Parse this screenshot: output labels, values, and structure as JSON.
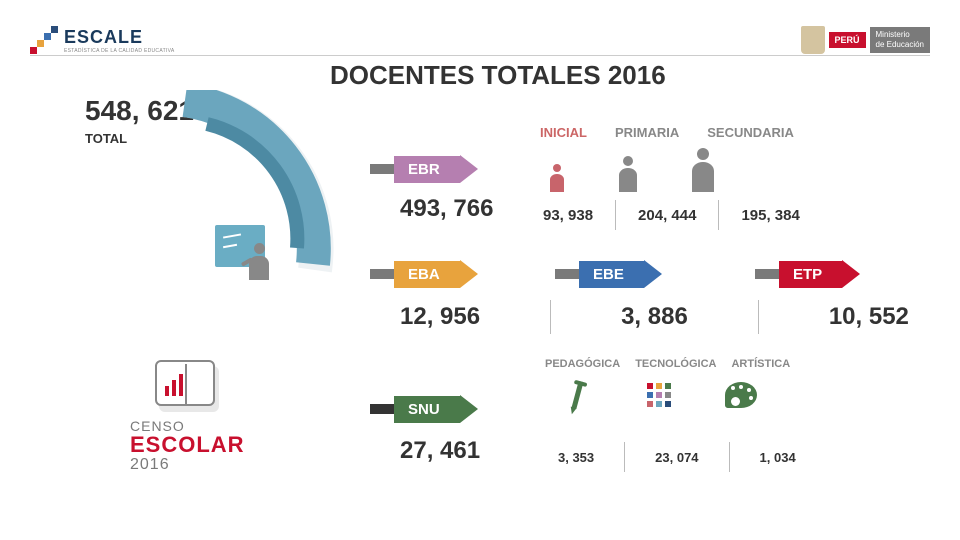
{
  "header": {
    "logo_text": "ESCALE",
    "logo_sub": "ESTADÍSTICA DE LA CALIDAD EDUCATIVA",
    "stairs_colors": [
      "#c8102e",
      "#e8a33d",
      "#3b6fb0",
      "#2a4d7a"
    ],
    "peru": "PERÚ",
    "ministry_l1": "Ministerio",
    "ministry_l2": "de Educación"
  },
  "title": "DOCENTES TOTALES 2016",
  "total": {
    "value": "548, 621",
    "label": "TOTAL"
  },
  "arc": {
    "outer_color": "#6ba6be",
    "inner_color": "#4d8aa3",
    "bg": "#eef2f4"
  },
  "ebr": {
    "tag": "EBR",
    "tag_color": "#b57fb0",
    "total": "493, 766",
    "cats": [
      "INICIAL",
      "PRIMARIA",
      "SECUNDARIA"
    ],
    "vals": [
      "93, 938",
      "204, 444",
      "195, 384"
    ],
    "person_color_inicial": "#c8646b",
    "person_color": "#888888"
  },
  "row2": {
    "tags": [
      {
        "name": "EBA",
        "color": "#e8a33d"
      },
      {
        "name": "EBE",
        "color": "#3b6fb0"
      },
      {
        "name": "ETP",
        "color": "#c8102e"
      }
    ],
    "vals": [
      "12, 956",
      "3, 886",
      "10, 552"
    ]
  },
  "snu": {
    "tag": "SNU",
    "tag_color": "#4a7a4a",
    "total": "27, 461",
    "cats": [
      "PEDAGÓGICA",
      "TECNOLÓGICA",
      "ARTÍSTICA"
    ],
    "vals": [
      "3, 353",
      "23, 074",
      "1, 034"
    ],
    "grid_colors": [
      "#c8102e",
      "#e8a33d",
      "#4a7a4a",
      "#3b6fb0",
      "#b57fb0",
      "#888",
      "#c8646b",
      "#6ba6be",
      "#2a4d7a"
    ]
  },
  "censo": {
    "l1": "CENSO",
    "l2": "ESCOLAR",
    "l3": "2016"
  }
}
